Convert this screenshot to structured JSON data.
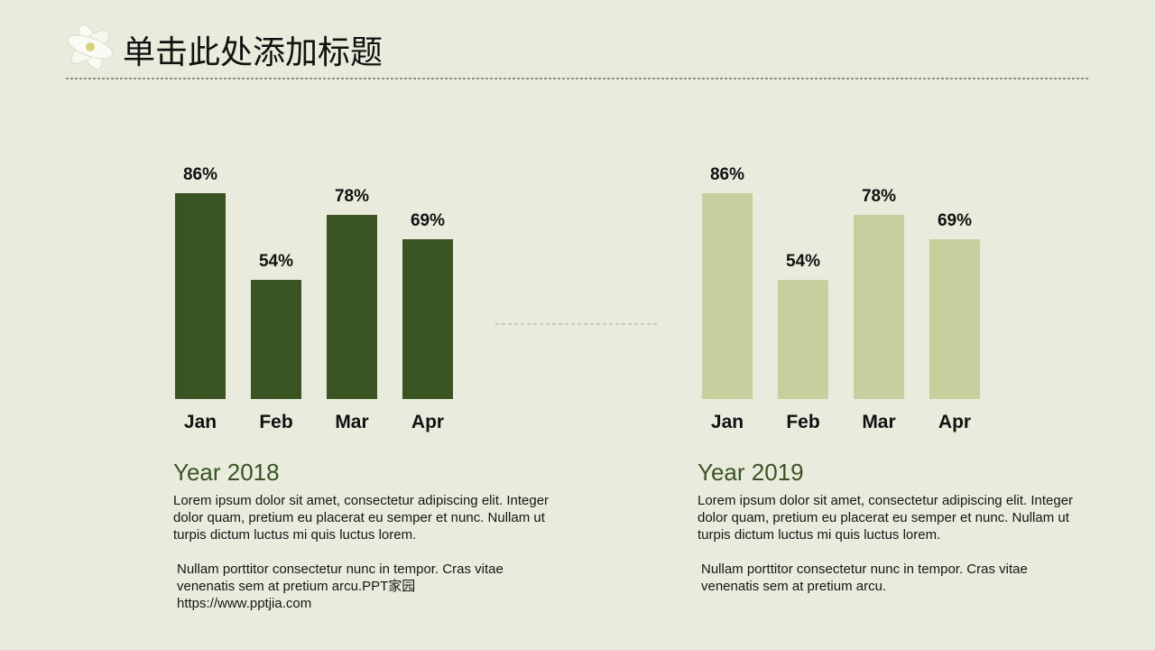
{
  "title": "单击此处添加标题",
  "chart_data": [
    {
      "type": "bar",
      "categories": [
        "Jan",
        "Feb",
        "Mar",
        "Apr"
      ],
      "values": [
        86,
        54,
        78,
        69
      ],
      "value_labels": [
        "86%",
        "54%",
        "78%",
        "69%"
      ],
      "color": "#3a5323",
      "ylim": [
        10,
        90
      ]
    },
    {
      "type": "bar",
      "categories": [
        "Jan",
        "Feb",
        "Mar",
        "Apr"
      ],
      "values": [
        86,
        54,
        78,
        69
      ],
      "value_labels": [
        "86%",
        "54%",
        "78%",
        "69%"
      ],
      "color": "#c8cf9f",
      "ylim": [
        10,
        90
      ]
    }
  ],
  "sections": [
    {
      "heading": "Year 2018",
      "paragraphs": [
        "Lorem ipsum dolor sit amet, consectetur adipiscing elit. Integer dolor quam, pretium eu placerat eu semper et nunc. Nullam ut turpis dictum luctus mi quis luctus lorem.",
        "Nullam porttitor consectetur nunc in tempor. Cras vitae venenatis sem at pretium arcu.PPT家园 https://www.pptjia.com"
      ]
    },
    {
      "heading": "Year 2019",
      "paragraphs": [
        "Lorem ipsum dolor sit amet, consectetur adipiscing elit. Integer dolor quam, pretium eu placerat eu semper et nunc. Nullam ut turpis dictum luctus mi quis luctus lorem.",
        "Nullam porttitor consectetur nunc in tempor. Cras vitae venenatis sem at pretium arcu."
      ]
    }
  ]
}
